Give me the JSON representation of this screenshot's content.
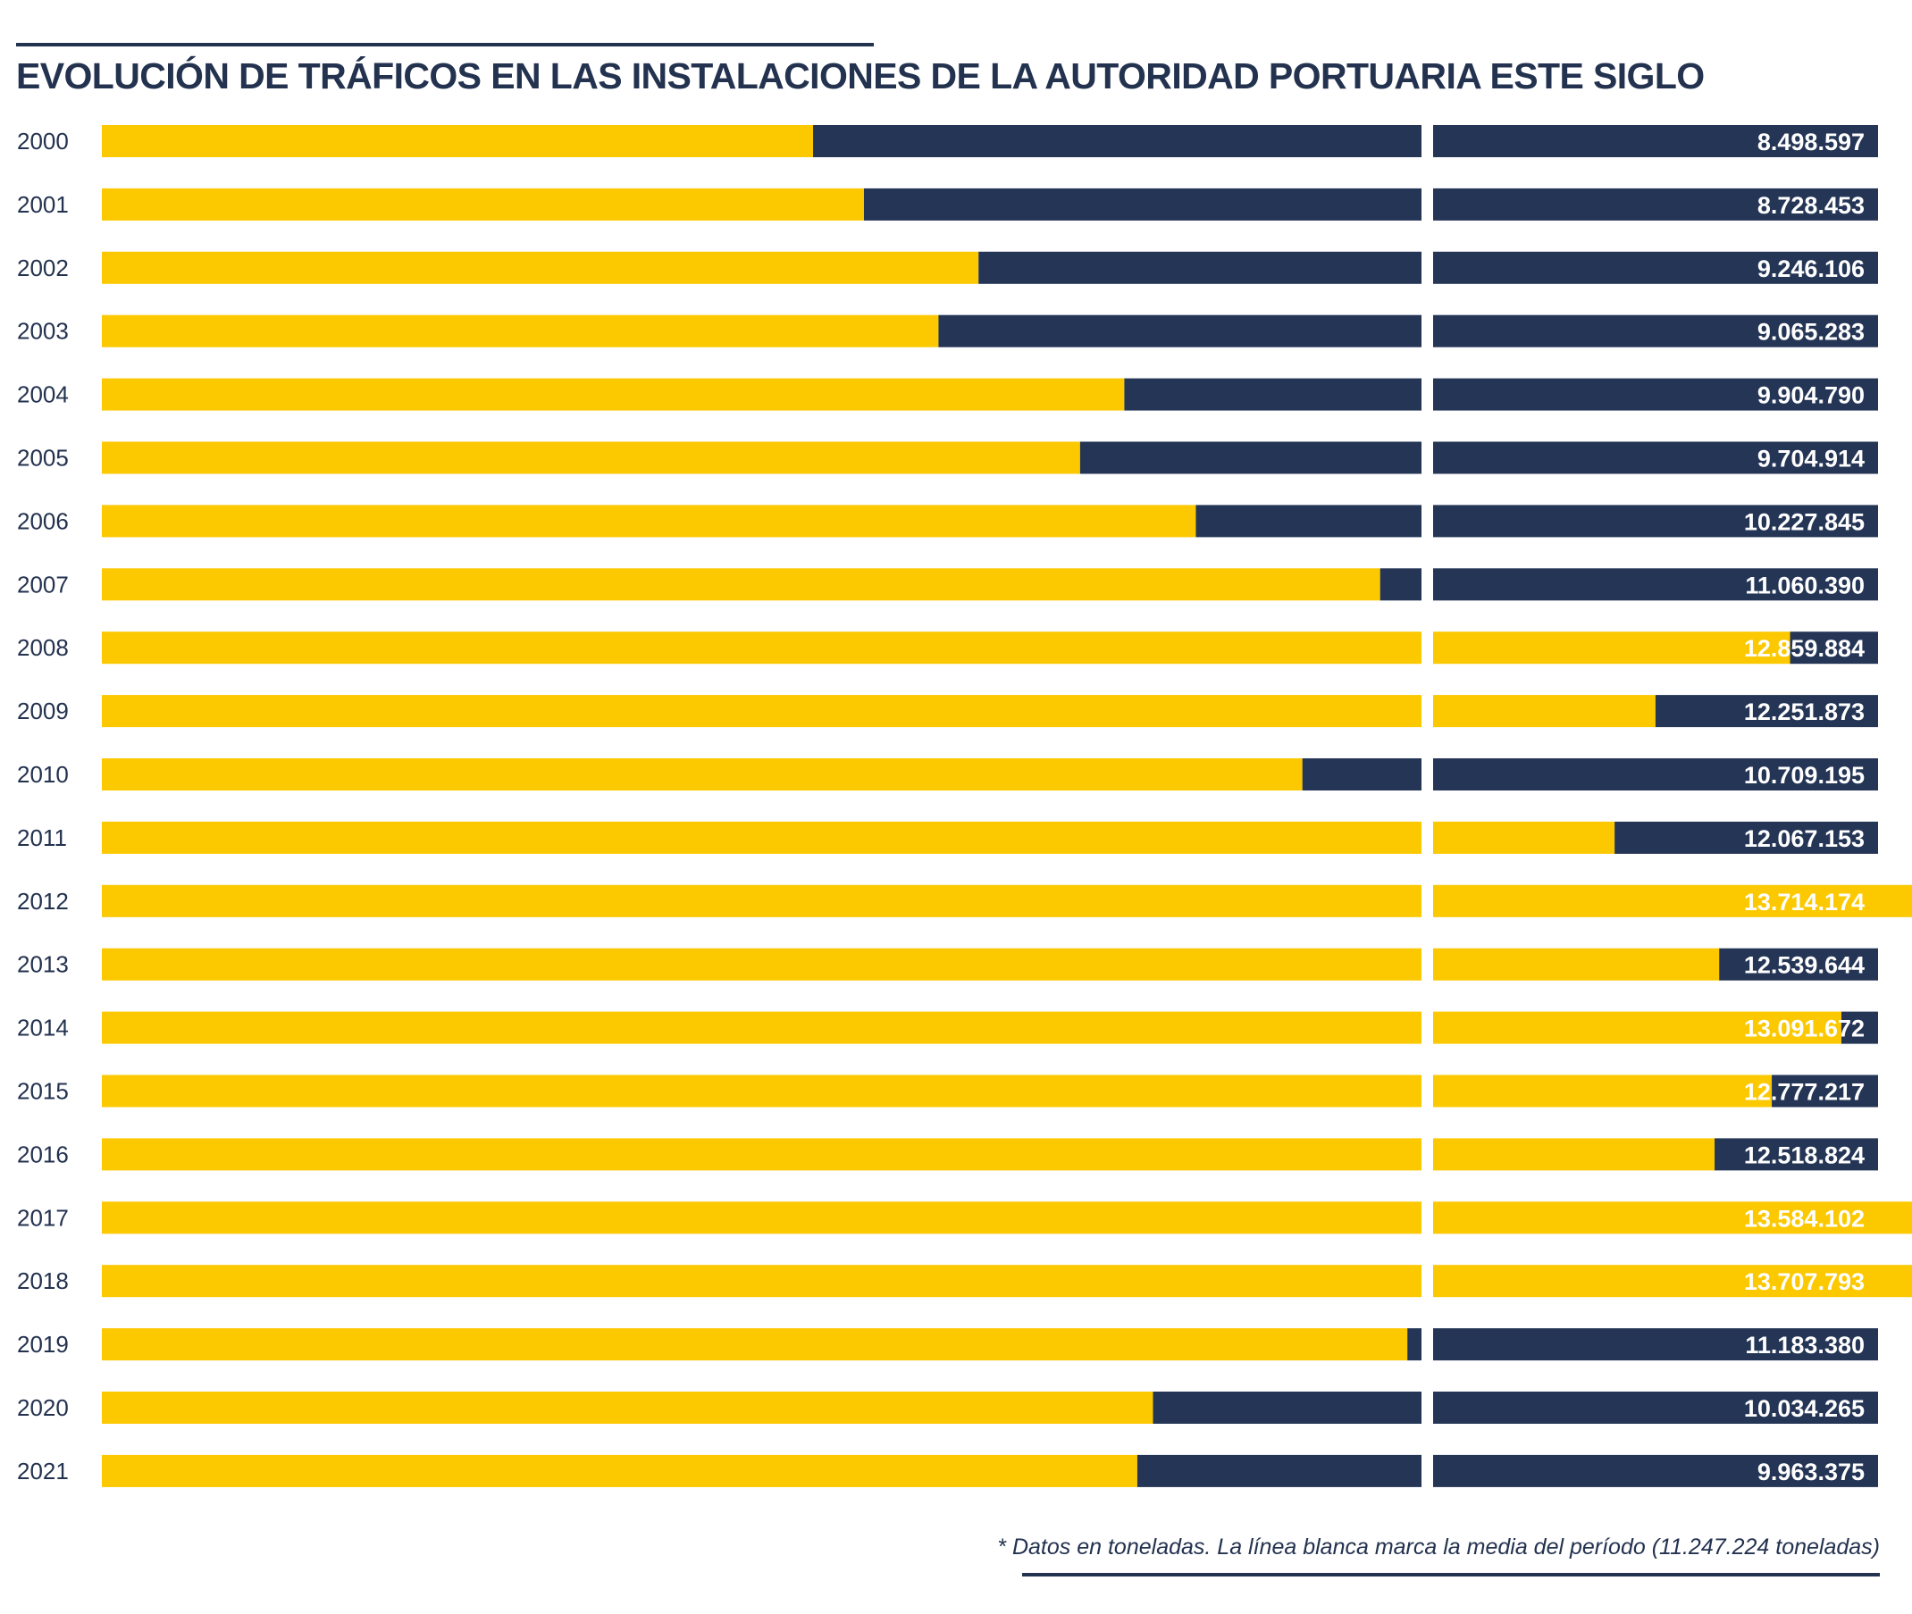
{
  "title": "EVOLUCIÓN DE TRÁFICOS EN LAS INSTALACIONES DE LA AUTORIDAD PORTUARIA ESTE SIGLO",
  "note": "* Datos en toneladas. La línea blanca marca la media del período (11.247.224 toneladas)",
  "colors": {
    "yellow": "#fcc800",
    "navy": "#243556",
    "text": "#23324f"
  },
  "chart_data": {
    "type": "bar",
    "orientation": "horizontal",
    "title": "EVOLUCIÓN DE TRÁFICOS EN LAS INSTALACIONES DE LA AUTORIDAD PORTUARIA ESTE SIGLO",
    "unit": "toneladas",
    "reference_line": {
      "value": 11247224
    },
    "categories": [
      "2000",
      "2001",
      "2002",
      "2003",
      "2004",
      "2005",
      "2006",
      "2007",
      "2008",
      "2009",
      "2010",
      "2011",
      "2012",
      "2013",
      "2014",
      "2015",
      "2016",
      "2017",
      "2018",
      "2019",
      "2020",
      "2021"
    ],
    "values": [
      8498597,
      8728453,
      9246106,
      9065283,
      9904790,
      9704914,
      10227845,
      11060390,
      12859884,
      12251873,
      10709195,
      12067153,
      13714174,
      12539644,
      13091672,
      12777217,
      12518824,
      13584102,
      13707793,
      11183380,
      10034265,
      9963375
    ],
    "value_labels": [
      "8.498.597",
      "8.728.453",
      "9.246.106",
      "9.065.283",
      "9.904.790",
      "9.704.914",
      "10.227.845",
      "11.060.390",
      "12.859.884",
      "12.251.873",
      "10.709.195",
      "12.067.153",
      "13.714.174",
      "12.539.644",
      "13.091.672",
      "12.777.217",
      "12.518.824",
      "13.584.102",
      "13.707.793",
      "11.183.380",
      "10.034.265",
      "9.963.375"
    ]
  }
}
